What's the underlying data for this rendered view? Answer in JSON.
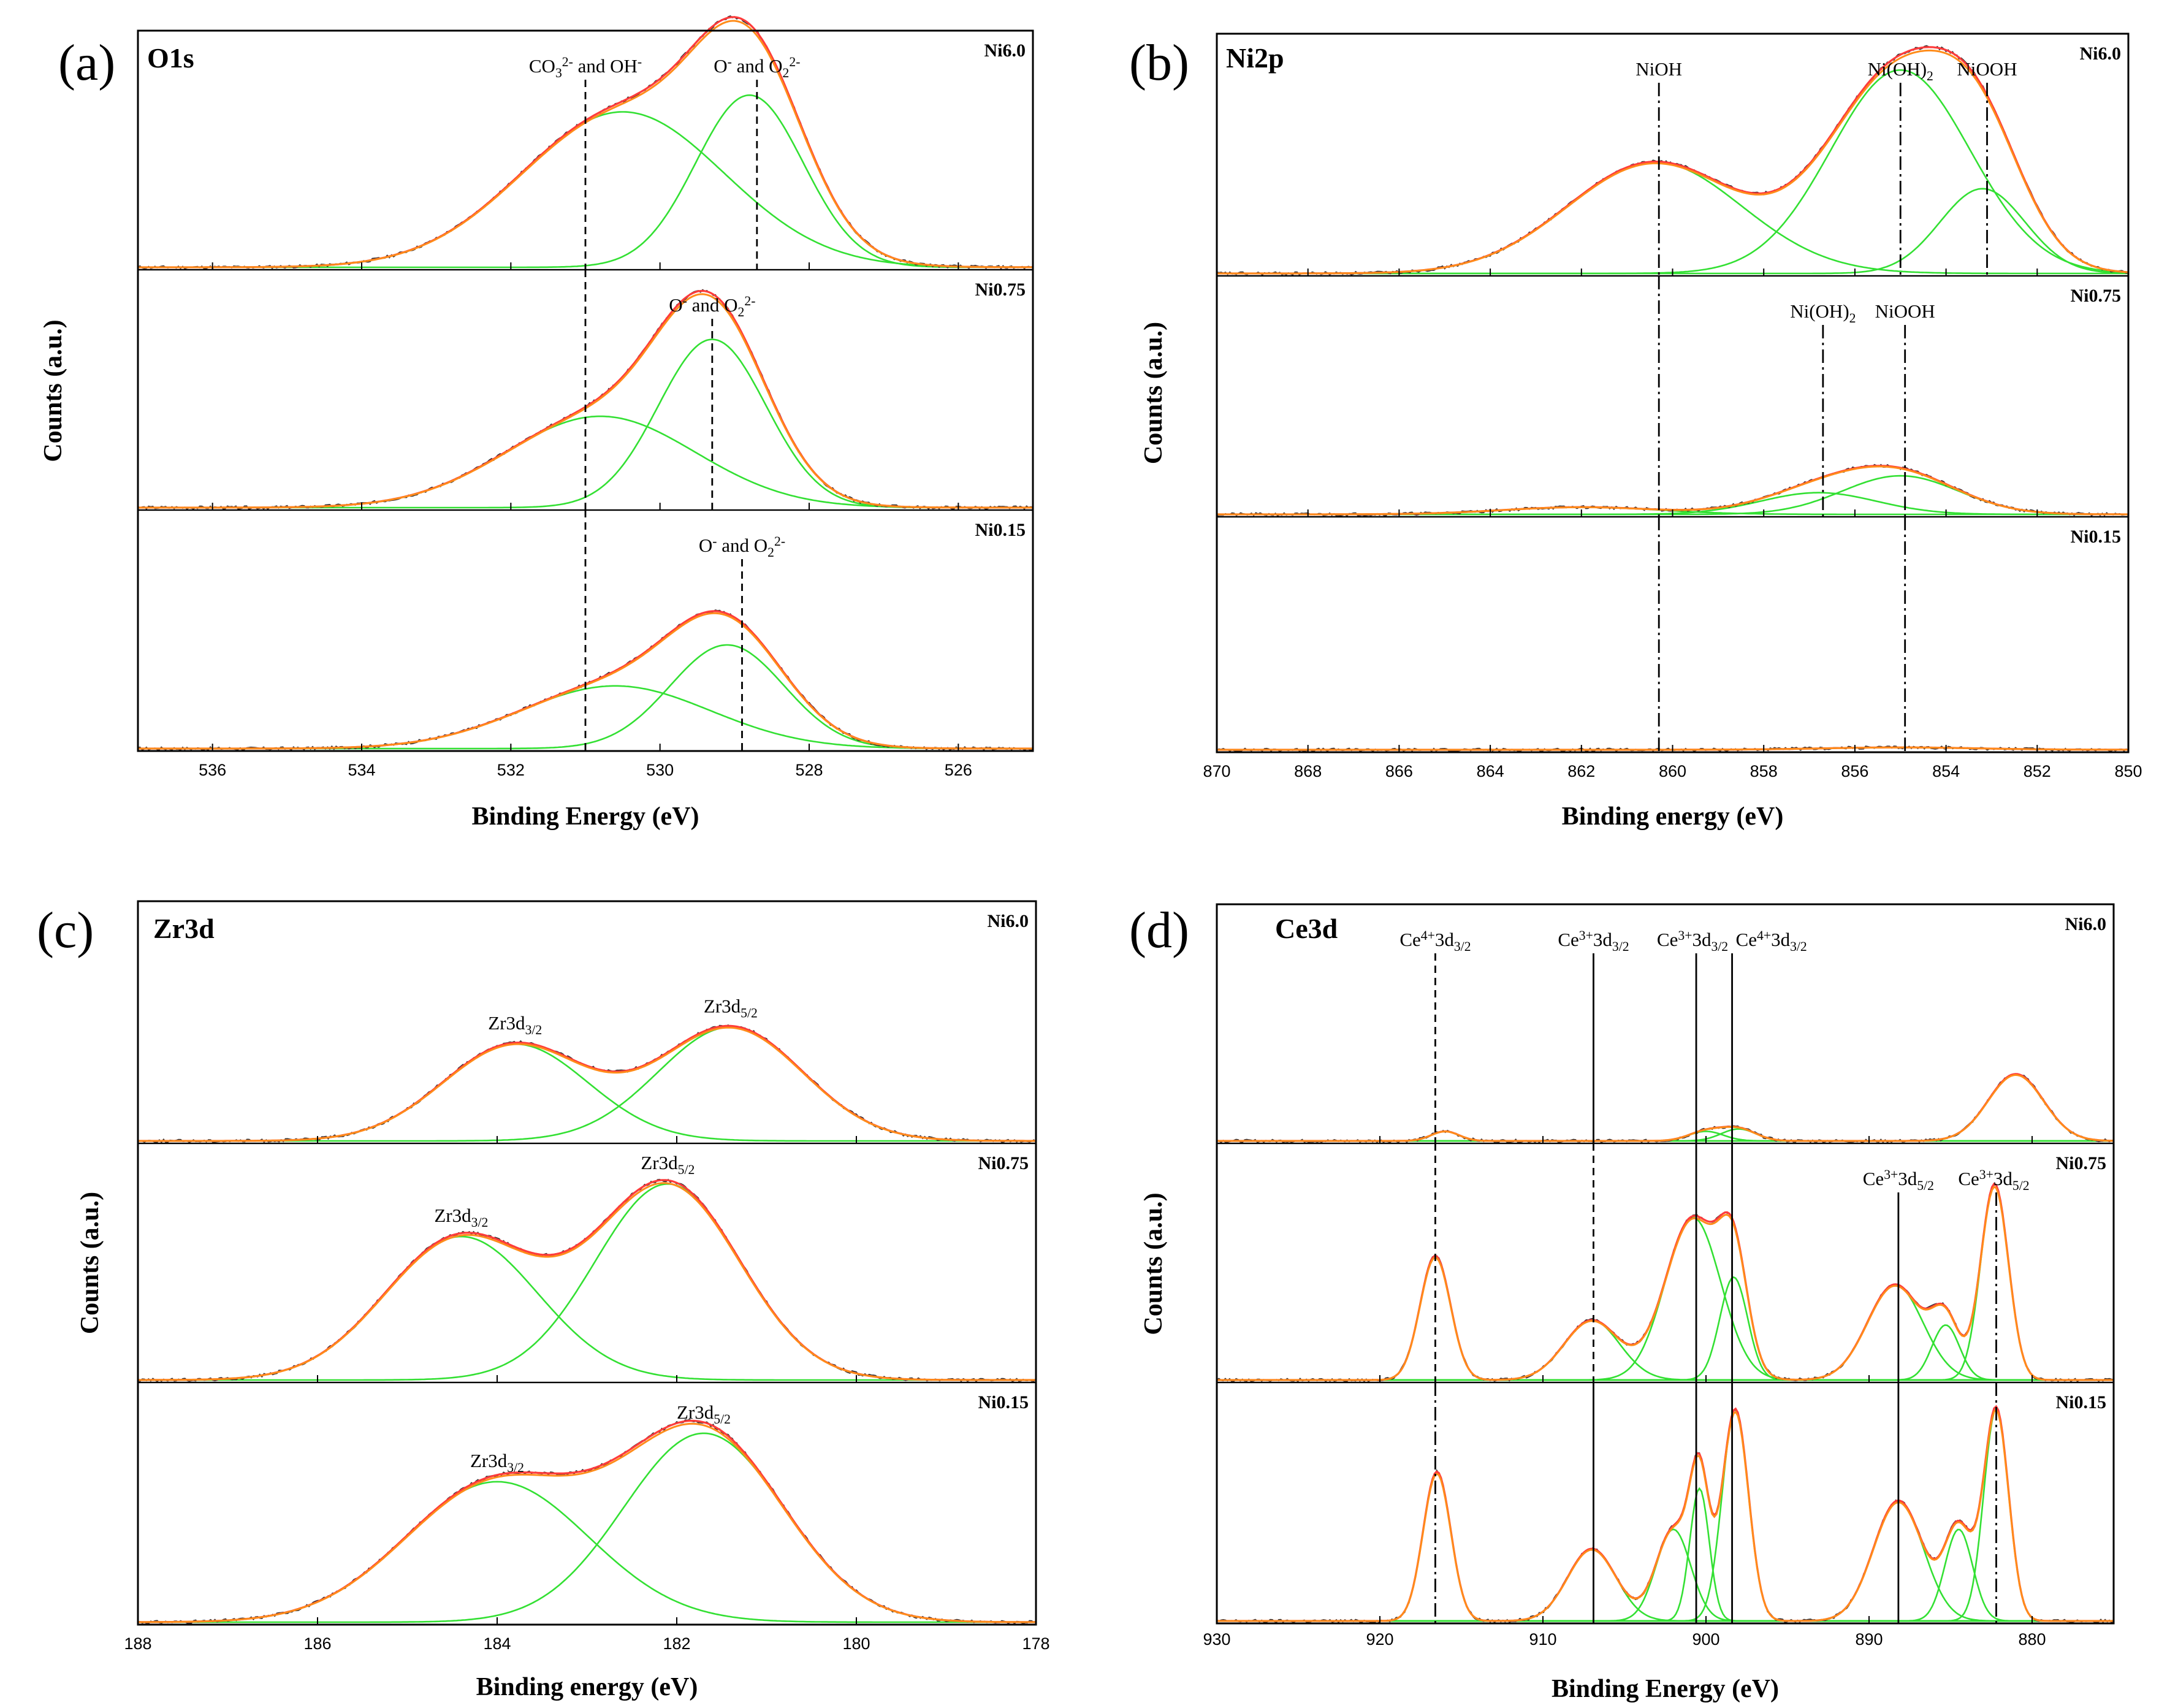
{
  "chart_data": [
    {
      "id": "a",
      "type": "line",
      "panel_label": "(a)",
      "title": "O1s",
      "xlabel": "Binding Energy (eV)",
      "ylabel": "Counts (a.u.)",
      "xlim": [
        537,
        525
      ],
      "xticks": [
        "536",
        "534",
        "532",
        "530",
        "528",
        "526"
      ],
      "colors": {
        "raw": "#333333",
        "envelope": "#ff3b3b",
        "background": "#ff8c1a",
        "component": "#33e033",
        "marker": "#000000"
      },
      "samples": [
        {
          "name": "Ni6.0",
          "components": [
            {
              "center": 530.5,
              "fwhm": 3.2,
              "amp": 0.65
            },
            {
              "center": 528.8,
              "fwhm": 1.7,
              "amp": 0.72
            }
          ],
          "markers": [
            {
              "x": 531.0,
              "style": "dash",
              "label_parts": [
                {
                  "t": "CO"
                },
                {
                  "t": "3",
                  "s": "sub"
                },
                {
                  "t": "2-",
                  "s": "sup"
                },
                {
                  "t": " and OH"
                },
                {
                  "t": "-",
                  "s": "sup"
                }
              ]
            },
            {
              "x": 528.7,
              "style": "dash",
              "label_parts": [
                {
                  "t": "O"
                },
                {
                  "t": "-",
                  "s": "sup"
                },
                {
                  "t": " and O"
                },
                {
                  "t": "2",
                  "s": "sub"
                },
                {
                  "t": "2-",
                  "s": "sup"
                }
              ]
            }
          ]
        },
        {
          "name": "Ni0.75",
          "components": [
            {
              "center": 530.8,
              "fwhm": 3.0,
              "amp": 0.38
            },
            {
              "center": 529.3,
              "fwhm": 1.7,
              "amp": 0.7
            }
          ],
          "markers": [
            {
              "x": 531.0,
              "style": "dash",
              "label_parts": []
            },
            {
              "x": 529.3,
              "style": "dash",
              "label_parts": [
                {
                  "t": "O"
                },
                {
                  "t": "-",
                  "s": "sup"
                },
                {
                  "t": " and O"
                },
                {
                  "t": "2",
                  "s": "sub"
                },
                {
                  "t": "2-",
                  "s": "sup"
                }
              ]
            }
          ]
        },
        {
          "name": "Ni0.15",
          "components": [
            {
              "center": 530.6,
              "fwhm": 3.0,
              "amp": 0.26
            },
            {
              "center": 529.1,
              "fwhm": 1.8,
              "amp": 0.43
            }
          ],
          "markers": [
            {
              "x": 531.0,
              "style": "dash",
              "label_parts": []
            },
            {
              "x": 528.9,
              "style": "dash",
              "label_parts": [
                {
                  "t": "O"
                },
                {
                  "t": "-",
                  "s": "sup"
                },
                {
                  "t": " and O"
                },
                {
                  "t": "2",
                  "s": "sub"
                },
                {
                  "t": "2-",
                  "s": "sup"
                }
              ]
            }
          ]
        }
      ]
    },
    {
      "id": "b",
      "type": "line",
      "panel_label": "(b)",
      "title": "Ni2p",
      "xlabel": "Binding energy (eV)",
      "ylabel": "Counts (a.u.)",
      "xlim": [
        870,
        850
      ],
      "xticks": [
        "870",
        "868",
        "866",
        "864",
        "862",
        "860",
        "858",
        "856",
        "854",
        "852",
        "850"
      ],
      "colors": {
        "raw": "#333333",
        "envelope": "#ff3b3b",
        "background": "#ff8c1a",
        "component": "#33e033",
        "marker": "#000000"
      },
      "samples": [
        {
          "name": "Ni6.0",
          "components": [
            {
              "center": 860.4,
              "fwhm": 4.5,
              "amp": 0.46
            },
            {
              "center": 855.0,
              "fwhm": 3.6,
              "amp": 0.84
            },
            {
              "center": 853.2,
              "fwhm": 2.2,
              "amp": 0.35
            }
          ],
          "markers": [
            {
              "x": 860.3,
              "style": "dashdot",
              "label_parts": [
                {
                  "t": "NiOH"
                }
              ]
            },
            {
              "x": 855.0,
              "style": "dashdot",
              "label_parts": [
                {
                  "t": "Ni(OH)"
                },
                {
                  "t": "2",
                  "s": "sub"
                }
              ]
            },
            {
              "x": 853.1,
              "style": "dashdot",
              "label_parts": [
                {
                  "t": "NiOOH"
                }
              ]
            }
          ]
        },
        {
          "name": "Ni0.75",
          "components": [
            {
              "center": 862.0,
              "fwhm": 4.0,
              "amp": 0.03
            },
            {
              "center": 856.8,
              "fwhm": 3.0,
              "amp": 0.09
            },
            {
              "center": 855.0,
              "fwhm": 3.0,
              "amp": 0.16
            }
          ],
          "markers": [
            {
              "x": 860.3,
              "style": "dashdot",
              "label_parts": []
            },
            {
              "x": 856.7,
              "style": "dashdot",
              "label_parts": [
                {
                  "t": "Ni(OH)"
                },
                {
                  "t": "2",
                  "s": "sub"
                }
              ]
            },
            {
              "x": 854.9,
              "style": "dashdot",
              "label_parts": [
                {
                  "t": "NiOOH"
                }
              ]
            }
          ]
        },
        {
          "name": "Ni0.15",
          "components": [
            {
              "center": 855.0,
              "fwhm": 4.0,
              "amp": 0.01
            }
          ],
          "markers": [
            {
              "x": 860.3,
              "style": "dashdot",
              "label_parts": []
            },
            {
              "x": 854.9,
              "style": "dashdot",
              "label_parts": []
            }
          ]
        }
      ]
    },
    {
      "id": "c",
      "type": "line",
      "panel_label": "(c)",
      "title": "Zr3d",
      "xlabel": "Binding energy (eV)",
      "ylabel": "Counts (a.u.)",
      "xlim": [
        188,
        178
      ],
      "xticks": [
        "188",
        "186",
        "184",
        "182",
        "180",
        "178"
      ],
      "colors": {
        "raw": "#333333",
        "envelope": "#ff3b3b",
        "background": "#ff8c1a",
        "component": "#33e033",
        "marker": "#000000"
      },
      "samples": [
        {
          "name": "Ni6.0",
          "components": [
            {
              "center": 183.8,
              "fwhm": 1.9,
              "amp": 0.4
            },
            {
              "center": 181.4,
              "fwhm": 1.9,
              "amp": 0.47
            }
          ],
          "markers": [],
          "peak_labels": [
            {
              "x": 183.8,
              "label_parts": [
                {
                  "t": "Zr3d"
                },
                {
                  "t": "3/2",
                  "s": "sub"
                }
              ]
            },
            {
              "x": 181.4,
              "label_parts": [
                {
                  "t": "Zr3d"
                },
                {
                  "t": "5/2",
                  "s": "sub"
                }
              ]
            }
          ]
        },
        {
          "name": "Ni0.75",
          "components": [
            {
              "center": 184.4,
              "fwhm": 2.0,
              "amp": 0.6
            },
            {
              "center": 182.1,
              "fwhm": 1.9,
              "amp": 0.82
            }
          ],
          "markers": [],
          "peak_labels": [
            {
              "x": 184.4,
              "label_parts": [
                {
                  "t": "Zr3d"
                },
                {
                  "t": "3/2",
                  "s": "sub"
                }
              ]
            },
            {
              "x": 182.1,
              "label_parts": [
                {
                  "t": "Zr3d"
                },
                {
                  "t": "5/2",
                  "s": "sub"
                }
              ]
            }
          ]
        },
        {
          "name": "Ni0.15",
          "components": [
            {
              "center": 184.0,
              "fwhm": 2.4,
              "amp": 0.58
            },
            {
              "center": 181.7,
              "fwhm": 2.1,
              "amp": 0.78
            }
          ],
          "markers": [],
          "peak_labels": [
            {
              "x": 184.0,
              "label_parts": [
                {
                  "t": "Zr3d"
                },
                {
                  "t": "3/2",
                  "s": "sub"
                }
              ]
            },
            {
              "x": 181.7,
              "label_parts": [
                {
                  "t": "Zr3d"
                },
                {
                  "t": "5/2",
                  "s": "sub"
                }
              ]
            }
          ]
        }
      ]
    },
    {
      "id": "d",
      "type": "line",
      "panel_label": "(d)",
      "title": "Ce3d",
      "xlabel": "Binding Energy (eV)",
      "ylabel": "Counts (a.u.)",
      "xlim": [
        930,
        875
      ],
      "xticks": [
        "930",
        "920",
        "910",
        "900",
        "890",
        "880"
      ],
      "colors": {
        "raw": "#333333",
        "envelope": "#ff3b3b",
        "background": "#ff8c1a",
        "component": "#33e033",
        "marker": "#000000"
      },
      "samples": [
        {
          "name": "Ni6.0",
          "components": [
            {
              "center": 916.0,
              "fwhm": 2.0,
              "amp": 0.04
            },
            {
              "center": 900.0,
              "fwhm": 2.5,
              "amp": 0.04
            },
            {
              "center": 898.0,
              "fwhm": 2.5,
              "amp": 0.05
            },
            {
              "center": 881.0,
              "fwhm": 4.0,
              "amp": 0.28
            }
          ],
          "markers": [
            {
              "x": 916.6,
              "style": "dash",
              "label_parts": [
                {
                  "t": "Ce"
                },
                {
                  "t": "4+",
                  "s": "sup"
                },
                {
                  "t": "3d"
                },
                {
                  "t": "3/2",
                  "s": "sub"
                }
              ]
            },
            {
              "x": 906.9,
              "style": "solid",
              "label_parts": [
                {
                  "t": "Ce"
                },
                {
                  "t": "3+",
                  "s": "sup"
                },
                {
                  "t": "3d"
                },
                {
                  "t": "3/2",
                  "s": "sub"
                }
              ]
            },
            {
              "x": 900.6,
              "style": "solid",
              "label_parts": [
                {
                  "t": "Ce"
                },
                {
                  "t": "3+",
                  "s": "sup"
                },
                {
                  "t": "3d"
                },
                {
                  "t": "3/2",
                  "s": "sub"
                }
              ]
            },
            {
              "x": 898.4,
              "style": "solid",
              "label_parts": [
                {
                  "t": "Ce"
                },
                {
                  "t": "4+",
                  "s": "sup"
                },
                {
                  "t": "3d"
                },
                {
                  "t": "3/2",
                  "s": "sub"
                }
              ]
            }
          ]
        },
        {
          "name": "Ni0.75",
          "components": [
            {
              "center": 916.6,
              "fwhm": 2.2,
              "amp": 0.52
            },
            {
              "center": 907.0,
              "fwhm": 4.0,
              "amp": 0.25
            },
            {
              "center": 900.8,
              "fwhm": 4.0,
              "amp": 0.68
            },
            {
              "center": 898.3,
              "fwhm": 2.0,
              "amp": 0.43
            },
            {
              "center": 888.4,
              "fwhm": 4.0,
              "amp": 0.4
            },
            {
              "center": 885.3,
              "fwhm": 2.0,
              "amp": 0.23
            },
            {
              "center": 882.3,
              "fwhm": 2.0,
              "amp": 0.82
            }
          ],
          "markers": [
            {
              "x": 916.6,
              "style": "dash",
              "label_parts": []
            },
            {
              "x": 906.9,
              "style": "dash",
              "label_parts": []
            },
            {
              "x": 900.6,
              "style": "solid",
              "label_parts": []
            },
            {
              "x": 898.4,
              "style": "solid",
              "label_parts": []
            },
            {
              "x": 888.2,
              "style": "solid",
              "label_parts": [
                {
                  "t": "Ce"
                },
                {
                  "t": "3+",
                  "s": "sup"
                },
                {
                  "t": "3d"
                },
                {
                  "t": "5/2",
                  "s": "sub"
                }
              ]
            },
            {
              "x": 882.2,
              "style": "dashdot",
              "label_parts": [
                {
                  "t": "Ce"
                },
                {
                  "t": "3+",
                  "s": "sup"
                },
                {
                  "t": "3d"
                },
                {
                  "t": "5/2",
                  "s": "sub"
                }
              ]
            }
          ]
        },
        {
          "name": "Ni0.15",
          "components": [
            {
              "center": 916.5,
              "fwhm": 2.0,
              "amp": 0.62
            },
            {
              "center": 907.0,
              "fwhm": 3.5,
              "amp": 0.3
            },
            {
              "center": 902.0,
              "fwhm": 2.5,
              "amp": 0.38
            },
            {
              "center": 900.4,
              "fwhm": 1.4,
              "amp": 0.55
            },
            {
              "center": 898.2,
              "fwhm": 1.9,
              "amp": 0.88
            },
            {
              "center": 888.2,
              "fwhm": 3.6,
              "amp": 0.5
            },
            {
              "center": 884.5,
              "fwhm": 2.0,
              "amp": 0.38
            },
            {
              "center": 882.2,
              "fwhm": 1.8,
              "amp": 0.88
            }
          ],
          "markers": [
            {
              "x": 916.6,
              "style": "dashdot",
              "label_parts": []
            },
            {
              "x": 906.9,
              "style": "solid",
              "label_parts": []
            },
            {
              "x": 900.6,
              "style": "solid",
              "label_parts": []
            },
            {
              "x": 898.4,
              "style": "solid",
              "label_parts": []
            },
            {
              "x": 888.2,
              "style": "solid",
              "label_parts": []
            },
            {
              "x": 882.2,
              "style": "dashdot",
              "label_parts": []
            }
          ]
        }
      ]
    }
  ]
}
